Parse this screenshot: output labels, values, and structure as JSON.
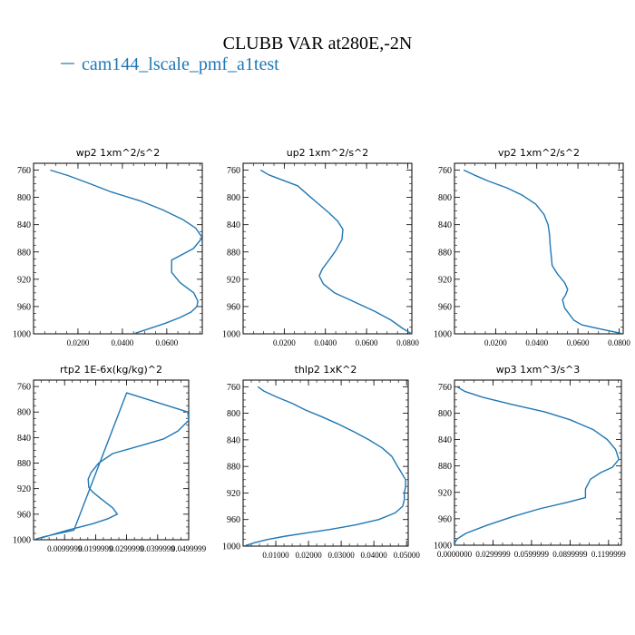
{
  "figure": {
    "title": "CLUBB VAR at280E,-2N",
    "legend_label": "cam144_lscale_pmf_a1test",
    "line_color": "#1f77b4"
  },
  "chart_data": [
    {
      "type": "line",
      "title": "wp2   1xm^2/s^2",
      "ylim": [
        1000,
        750
      ],
      "xlim": [
        0,
        0.076
      ],
      "yticks": [
        760,
        800,
        840,
        880,
        920,
        960,
        1000
      ],
      "xticks": [
        0.02,
        0.04,
        0.06
      ],
      "xtick_labels": [
        "0.0200",
        "0.0400",
        "0.0600"
      ],
      "series": [
        {
          "x": [
            0.0075,
            0.0155,
            0.0255,
            0.035,
            0.048,
            0.058,
            0.067,
            0.073,
            0.076,
            0.072,
            0.0622,
            0.0622,
            0.066,
            0.0722,
            0.074,
            0.0736,
            0.071,
            0.066,
            0.059,
            0.045
          ],
          "y": [
            760,
            768,
            780,
            792,
            805,
            818,
            832,
            845,
            859,
            875,
            892,
            910,
            925,
            940,
            952,
            960,
            968,
            976,
            985,
            1000
          ]
        }
      ]
    },
    {
      "type": "line",
      "title": "up2   1xm^2/s^2",
      "ylim": [
        1000,
        750
      ],
      "xlim": [
        0,
        0.082
      ],
      "yticks": [
        760,
        800,
        840,
        880,
        920,
        960,
        1000
      ],
      "xticks": [
        0.02,
        0.04,
        0.06,
        0.08
      ],
      "xtick_labels": [
        "0.0200",
        "0.0400",
        "0.0600",
        "0.0800"
      ],
      "series": [
        {
          "x": [
            0.0085,
            0.0125,
            0.0195,
            0.0265,
            0.031,
            0.036,
            0.0415,
            0.046,
            0.0485,
            0.048,
            0.045,
            0.0415,
            0.0385,
            0.037,
            0.039,
            0.0445,
            0.054,
            0.064,
            0.072,
            0.0775,
            0.082
          ],
          "y": [
            760,
            767,
            775,
            783,
            795,
            808,
            822,
            835,
            847,
            862,
            878,
            893,
            905,
            915,
            927,
            940,
            953,
            967,
            980,
            992,
            1000
          ]
        }
      ]
    },
    {
      "type": "line",
      "title": "vp2   1xm^2/s^2",
      "ylim": [
        1000,
        750
      ],
      "xlim": [
        0,
        0.082
      ],
      "yticks": [
        760,
        800,
        840,
        880,
        920,
        960,
        1000
      ],
      "xticks": [
        0.02,
        0.04,
        0.06,
        0.08
      ],
      "xtick_labels": [
        "0.0200",
        "0.0400",
        "0.0600",
        "0.0800"
      ],
      "series": [
        {
          "x": [
            0.0045,
            0.0095,
            0.0165,
            0.0255,
            0.033,
            0.0395,
            0.0435,
            0.0455,
            0.0462,
            0.0465,
            0.047,
            0.0475,
            0.05,
            0.0535,
            0.055,
            0.054,
            0.0525,
            0.0535,
            0.058,
            0.062,
            0.071,
            0.082
          ],
          "y": [
            760,
            767,
            776,
            786,
            797,
            810,
            825,
            840,
            855,
            870,
            885,
            900,
            912,
            925,
            935,
            943,
            950,
            962,
            980,
            987,
            993,
            1000
          ]
        }
      ]
    },
    {
      "type": "line",
      "title": "rtp2   1E-6x(kg/kg)^2",
      "ylim": [
        1000,
        750
      ],
      "xlim": [
        0.0,
        0.05
      ],
      "yticks": [
        760,
        800,
        840,
        880,
        920,
        960,
        1000
      ],
      "xticks": [
        0.00999999,
        0.0199999,
        0.0299999,
        0.0399999,
        0.0499999
      ],
      "xtick_labels": [
        "0.0099999",
        "0.0199999",
        "0.0299999",
        "0.0399999",
        "0.0499999"
      ],
      "series": [
        {
          "x": [
            0.0,
            0.0035,
            0.013,
            0.03,
            0.0497,
            0.05,
            0.0465,
            0.042,
            0.035,
            0.0255,
            0.021,
            0.0185,
            0.0176,
            0.0178,
            0.019,
            0.0215,
            0.0255,
            0.027,
            0.024,
            0.019,
            0.011,
            0.0025
          ],
          "y": [
            1000,
            995,
            985,
            770,
            800,
            813,
            830,
            842,
            852,
            865,
            880,
            895,
            905,
            918,
            925,
            935,
            950,
            960,
            967,
            975,
            985,
            997
          ]
        }
      ]
    },
    {
      "type": "line",
      "title": "thlp2   1xK^2",
      "ylim": [
        1000,
        750
      ],
      "xlim": [
        0,
        0.0505
      ],
      "yticks": [
        760,
        800,
        840,
        880,
        920,
        960,
        1000
      ],
      "xticks": [
        0.01,
        0.02,
        0.03,
        0.04,
        0.05
      ],
      "xtick_labels": [
        "0.01000",
        "0.02000",
        "0.03000",
        "0.04000",
        "0.05000"
      ],
      "series": [
        {
          "x": [
            0.0045,
            0.0065,
            0.0105,
            0.015,
            0.019,
            0.024,
            0.029,
            0.034,
            0.0385,
            0.0425,
            0.0455,
            0.047,
            0.0485,
            0.0497,
            0.0497,
            0.0493,
            0.0493,
            0.0488,
            0.0465,
            0.0415,
            0.0345,
            0.0265,
            0.0195,
            0.013,
            0.0075,
            0.0035,
            0.0002
          ],
          "y": [
            760,
            767,
            776,
            785,
            795,
            805,
            816,
            828,
            840,
            852,
            865,
            878,
            890,
            900,
            910,
            920,
            930,
            940,
            950,
            960,
            968,
            975,
            980,
            985,
            990,
            995,
            1000
          ]
        }
      ]
    },
    {
      "type": "line",
      "title": "wp3   1xm^3/s^3",
      "ylim": [
        1000,
        750
      ],
      "xlim": [
        0,
        0.13
      ],
      "yticks": [
        760,
        800,
        840,
        880,
        920,
        960,
        1000
      ],
      "xticks": [
        0.0,
        0.03,
        0.06,
        0.09,
        0.12
      ],
      "xtick_labels": [
        "0.0000000",
        "0.0299999",
        "0.0599999",
        "0.0899999",
        "0.1199999"
      ],
      "series": [
        {
          "x": [
            0.002,
            0.008,
            0.022,
            0.045,
            0.07,
            0.09,
            0.108,
            0.119,
            0.1255,
            0.128,
            0.123,
            0.114,
            0.106,
            0.102,
            0.102,
            0.088,
            0.066,
            0.045,
            0.025,
            0.009,
            0.0025,
            0.0005,
            0.0002
          ],
          "y": [
            760,
            767,
            776,
            787,
            798,
            810,
            825,
            840,
            855,
            870,
            882,
            890,
            900,
            915,
            928,
            935,
            945,
            957,
            970,
            982,
            990,
            995,
            1000
          ]
        }
      ]
    }
  ]
}
